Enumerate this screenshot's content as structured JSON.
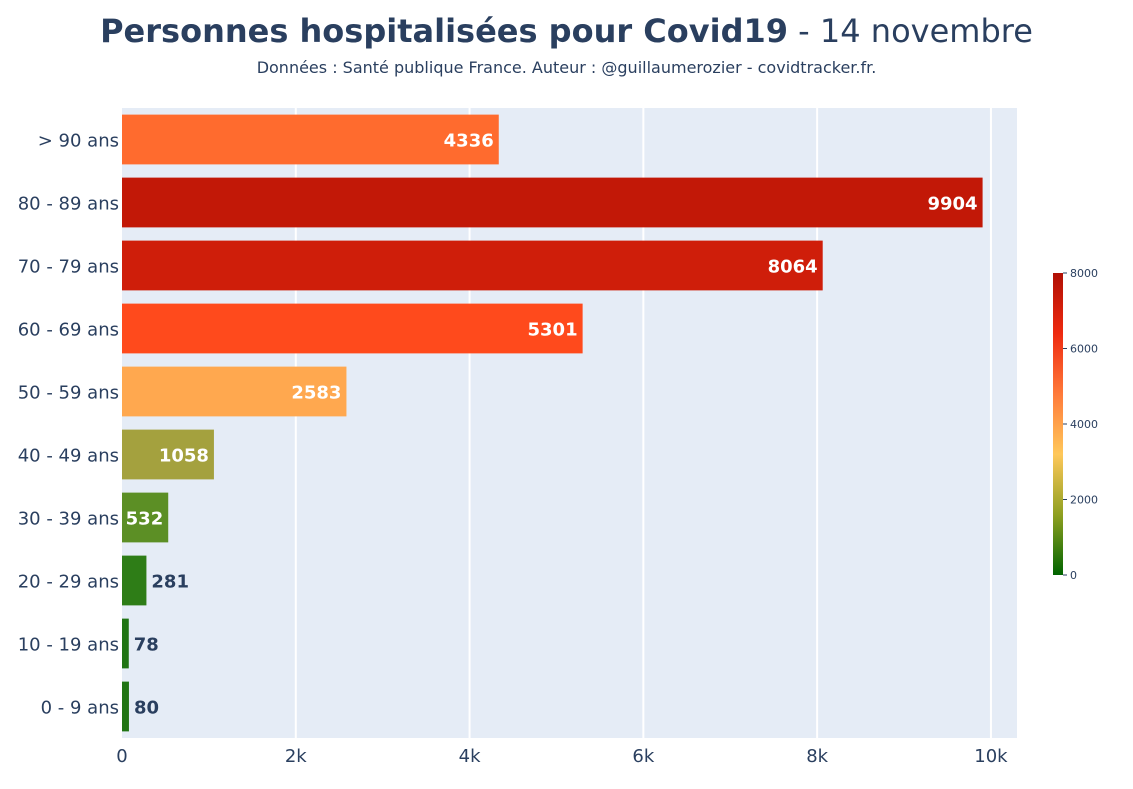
{
  "title_bold": "Personnes hospitalisées pour Covid19",
  "title_rest": " - 14 novembre",
  "subtitle": "Données : Santé publique France. Auteur : @guillaumerozier - covidtracker.fr.",
  "chart_data": {
    "type": "bar",
    "orientation": "horizontal",
    "title": "Personnes hospitalisées pour Covid19 - 14 novembre",
    "subtitle": "Données : Santé publique France. Auteur : @guillaumerozier - covidtracker.fr.",
    "categories": [
      "> 90 ans",
      "80 - 89 ans",
      "70 - 79 ans",
      "60 - 69 ans",
      "50 - 59 ans",
      "40 - 49 ans",
      "30 - 39 ans",
      "20 - 29 ans",
      "10 - 19 ans",
      "0 - 9 ans"
    ],
    "values": [
      4336,
      9904,
      8064,
      5301,
      2583,
      1058,
      532,
      281,
      78,
      80
    ],
    "bar_colors": [
      "#ff6b2e",
      "#c21807",
      "#cf1e0a",
      "#ff4a1c",
      "#ffa84f",
      "#a4a13e",
      "#5c8f25",
      "#2e7d17",
      "#207413",
      "#207413"
    ],
    "xlim": [
      0,
      10300
    ],
    "x_ticks": [
      0,
      2000,
      4000,
      6000,
      8000,
      10000
    ],
    "x_tick_labels": [
      "0",
      "2k",
      "4k",
      "6k",
      "8k",
      "10k"
    ],
    "grid": true,
    "colorbar": {
      "range": [
        0,
        8000
      ],
      "ticks": [
        0,
        2000,
        4000,
        6000,
        8000
      ],
      "tick_labels": [
        "0",
        "2000",
        "4000",
        "6000",
        "8000"
      ],
      "colors": [
        "#006400",
        "#8fa020",
        "#ffc85a",
        "#ff7a3a",
        "#ee2a10",
        "#b01005"
      ]
    }
  }
}
